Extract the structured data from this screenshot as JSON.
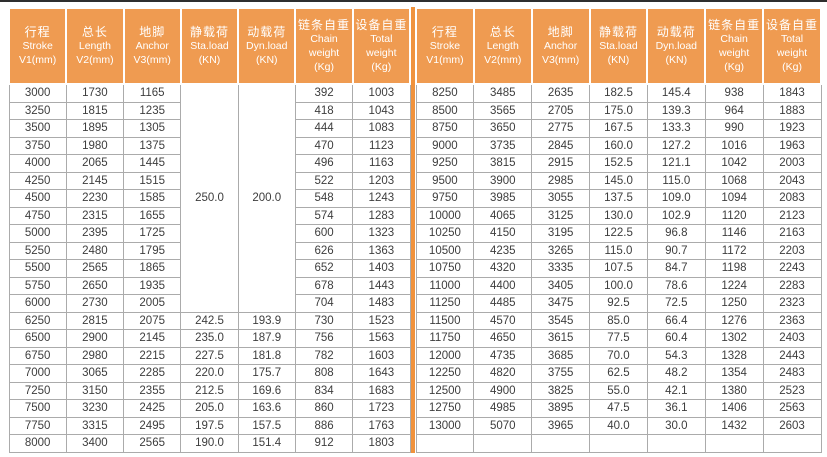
{
  "colors": {
    "header_bg": "#EF9B51",
    "divider": "#F0923C",
    "grid": "#ABABAB",
    "top_rule": "#2E2E2E",
    "cell_text": "#3D3D3D"
  },
  "chart_data": {
    "type": "table",
    "columns": [
      {
        "lines": [
          "行程",
          "Stroke",
          "V1(mm)"
        ]
      },
      {
        "lines": [
          "总长",
          "Length",
          "V2(mm)"
        ]
      },
      {
        "lines": [
          "地脚",
          "Anchor",
          "V3(mm)"
        ]
      },
      {
        "lines": [
          "静载荷",
          "Sta.load",
          "(KN)"
        ]
      },
      {
        "lines": [
          "动载荷",
          "Dyn.load",
          "(KN)"
        ]
      },
      {
        "lines": [
          "链条自重",
          "Chain",
          "weight",
          "(Kg)"
        ]
      },
      {
        "lines": [
          "设备自重",
          "Total",
          "weight",
          "(Kg)"
        ]
      }
    ],
    "left_table": {
      "merged_cells": [
        {
          "row": 0,
          "col": 3,
          "rowspan": 13,
          "value": "250.0"
        },
        {
          "row": 0,
          "col": 4,
          "rowspan": 13,
          "value": "200.0"
        }
      ],
      "rows": [
        [
          "3000",
          "1730",
          "1165",
          null,
          null,
          "392",
          "1003"
        ],
        [
          "3250",
          "1815",
          "1235",
          null,
          null,
          "418",
          "1043"
        ],
        [
          "3500",
          "1895",
          "1305",
          null,
          null,
          "444",
          "1083"
        ],
        [
          "3750",
          "1980",
          "1375",
          null,
          null,
          "470",
          "1123"
        ],
        [
          "4000",
          "2065",
          "1445",
          null,
          null,
          "496",
          "1163"
        ],
        [
          "4250",
          "2145",
          "1515",
          null,
          null,
          "522",
          "1203"
        ],
        [
          "4500",
          "2230",
          "1585",
          null,
          null,
          "548",
          "1243"
        ],
        [
          "4750",
          "2315",
          "1655",
          null,
          null,
          "574",
          "1283"
        ],
        [
          "5000",
          "2395",
          "1725",
          null,
          null,
          "600",
          "1323"
        ],
        [
          "5250",
          "2480",
          "1795",
          null,
          null,
          "626",
          "1363"
        ],
        [
          "5500",
          "2565",
          "1865",
          null,
          null,
          "652",
          "1403"
        ],
        [
          "5750",
          "2650",
          "1935",
          null,
          null,
          "678",
          "1443"
        ],
        [
          "6000",
          "2730",
          "2005",
          null,
          null,
          "704",
          "1483"
        ],
        [
          "6250",
          "2815",
          "2075",
          "242.5",
          "193.9",
          "730",
          "1523"
        ],
        [
          "6500",
          "2900",
          "2145",
          "235.0",
          "187.9",
          "756",
          "1563"
        ],
        [
          "6750",
          "2980",
          "2215",
          "227.5",
          "181.8",
          "782",
          "1603"
        ],
        [
          "7000",
          "3065",
          "2285",
          "220.0",
          "175.7",
          "808",
          "1643"
        ],
        [
          "7250",
          "3150",
          "2355",
          "212.5",
          "169.6",
          "834",
          "1683"
        ],
        [
          "7500",
          "3230",
          "2425",
          "205.0",
          "163.6",
          "860",
          "1723"
        ],
        [
          "7750",
          "3315",
          "2495",
          "197.5",
          "157.5",
          "886",
          "1763"
        ],
        [
          "8000",
          "3400",
          "2565",
          "190.0",
          "151.4",
          "912",
          "1803"
        ]
      ]
    },
    "right_table": {
      "merged_cells": [],
      "rows": [
        [
          "8250",
          "3485",
          "2635",
          "182.5",
          "145.4",
          "938",
          "1843"
        ],
        [
          "8500",
          "3565",
          "2705",
          "175.0",
          "139.3",
          "964",
          "1883"
        ],
        [
          "8750",
          "3650",
          "2775",
          "167.5",
          "133.3",
          "990",
          "1923"
        ],
        [
          "9000",
          "3735",
          "2845",
          "160.0",
          "127.2",
          "1016",
          "1963"
        ],
        [
          "9250",
          "3815",
          "2915",
          "152.5",
          "121.1",
          "1042",
          "2003"
        ],
        [
          "9500",
          "3900",
          "2985",
          "145.0",
          "115.0",
          "1068",
          "2043"
        ],
        [
          "9750",
          "3985",
          "3055",
          "137.5",
          "109.0",
          "1094",
          "2083"
        ],
        [
          "10000",
          "4065",
          "3125",
          "130.0",
          "102.9",
          "1120",
          "2123"
        ],
        [
          "10250",
          "4150",
          "3195",
          "122.5",
          "96.8",
          "1146",
          "2163"
        ],
        [
          "10500",
          "4235",
          "3265",
          "115.0",
          "90.7",
          "1172",
          "2203"
        ],
        [
          "10750",
          "4320",
          "3335",
          "107.5",
          "84.7",
          "1198",
          "2243"
        ],
        [
          "11000",
          "4400",
          "3405",
          "100.0",
          "78.6",
          "1224",
          "2283"
        ],
        [
          "11250",
          "4485",
          "3475",
          "92.5",
          "72.5",
          "1250",
          "2323"
        ],
        [
          "11500",
          "4570",
          "3545",
          "85.0",
          "66.4",
          "1276",
          "2363"
        ],
        [
          "11750",
          "4650",
          "3615",
          "77.5",
          "60.4",
          "1302",
          "2403"
        ],
        [
          "12000",
          "4735",
          "3685",
          "70.0",
          "54.3",
          "1328",
          "2443"
        ],
        [
          "12250",
          "4820",
          "3755",
          "62.5",
          "48.2",
          "1354",
          "2483"
        ],
        [
          "12500",
          "4900",
          "3825",
          "55.0",
          "42.1",
          "1380",
          "2523"
        ],
        [
          "12750",
          "4985",
          "3895",
          "47.5",
          "36.1",
          "1406",
          "2563"
        ],
        [
          "13000",
          "5070",
          "3965",
          "40.0",
          "30.0",
          "1432",
          "2603"
        ],
        [
          "",
          "",
          "",
          "",
          "",
          "",
          ""
        ]
      ]
    }
  }
}
